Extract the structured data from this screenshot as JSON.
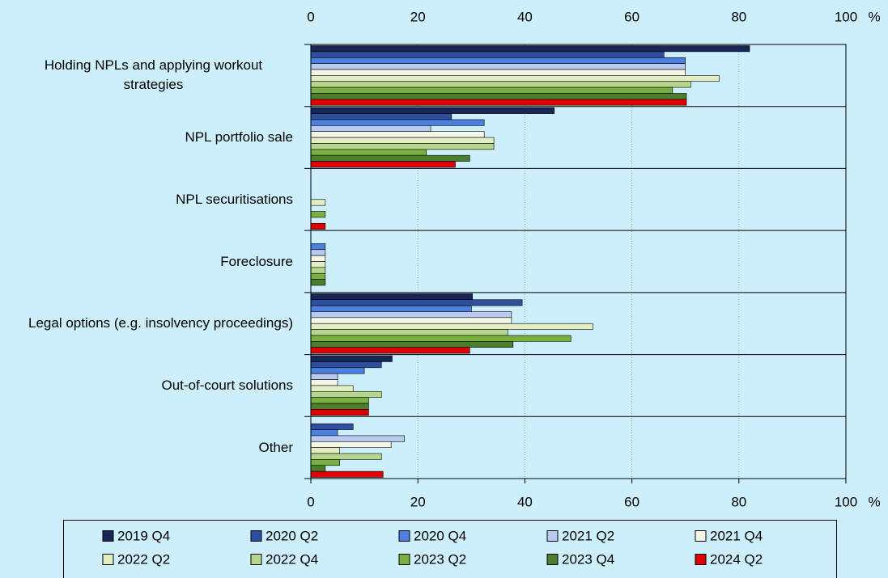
{
  "chart_data": {
    "type": "hbar",
    "xlabel": "%",
    "categories": [
      "Holding NPLs and applying workout strategies",
      "NPL portfolio sale",
      "NPL securitisations",
      "Foreclosure",
      "Legal options (e.g. insolvency proceedings)",
      "Out-of-court solutions",
      "Other"
    ],
    "xlim": [
      0,
      100
    ],
    "xticks": [
      0,
      20,
      40,
      60,
      80,
      100
    ],
    "grid": true,
    "series": [
      {
        "name": "2019 Q4",
        "color": "#172654",
        "values": [
          82,
          45.5,
          0,
          0,
          30.2,
          15.2,
          0
        ]
      },
      {
        "name": "2020 Q2",
        "color": "#2d4f9e",
        "values": [
          66,
          26.3,
          0,
          0,
          39.5,
          13.2,
          7.9
        ]
      },
      {
        "name": "2020 Q4",
        "color": "#4a80e0",
        "values": [
          70,
          32.4,
          0,
          2.7,
          30,
          10,
          5
        ]
      },
      {
        "name": "2021 Q2",
        "color": "#b9c9ef",
        "values": [
          70,
          22.4,
          0,
          2.7,
          37.5,
          5,
          17.5
        ]
      },
      {
        "name": "2021 Q4",
        "color": "#f4f6e8",
        "values": [
          70,
          32.4,
          0,
          2.7,
          37.5,
          5,
          15
        ]
      },
      {
        "name": "2022 Q2",
        "color": "#e3eec5",
        "values": [
          76.3,
          34.2,
          2.7,
          2.7,
          52.7,
          7.9,
          5.4
        ]
      },
      {
        "name": "2022 Q4",
        "color": "#b5d68c",
        "values": [
          71,
          34.2,
          0,
          2.7,
          36.8,
          13.2,
          13.2
        ]
      },
      {
        "name": "2023 Q2",
        "color": "#79b03f",
        "values": [
          67.6,
          21.6,
          2.7,
          2.7,
          48.6,
          10.8,
          5.4
        ]
      },
      {
        "name": "2023 Q4",
        "color": "#4b7f2e",
        "values": [
          70.2,
          29.7,
          0,
          2.7,
          37.8,
          10.8,
          2.7
        ]
      },
      {
        "name": "2024 Q2",
        "color": "#e00000",
        "values": [
          70.2,
          27,
          2.7,
          0,
          29.7,
          10.8,
          13.5
        ]
      }
    ]
  }
}
